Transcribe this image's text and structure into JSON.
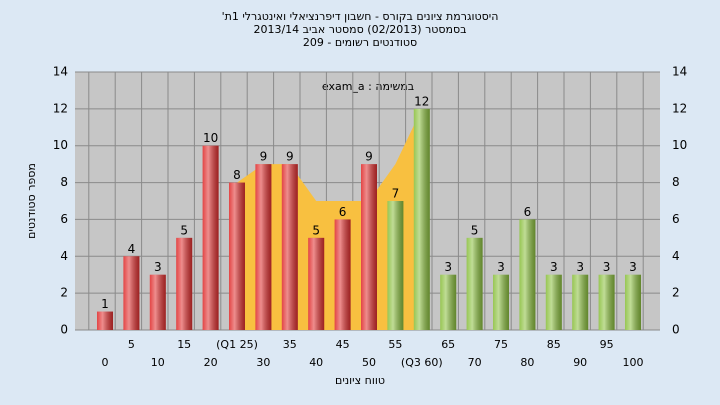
{
  "chart_data": {
    "type": "bar",
    "title": "היסטוגרמת ציונים בקורס - חשבון דיפרנציאלי ואינטגרלי 1ת'",
    "subtitle": "בסמסטר  (02/2013)  סמסטר אביב 2013/14",
    "subtitle2": "סטודנטים רשומים - 209",
    "annotation": "במשימה : exam_a",
    "xlabel": "טווח ציונים",
    "ylabel": "מספר סטודנטים",
    "categories": [
      "0",
      "5",
      "10",
      "15",
      "20",
      "(Q1 25)",
      "30",
      "35",
      "40",
      "45",
      "50",
      "55",
      "(Q3 60)",
      "65",
      "70",
      "75",
      "80",
      "85",
      "90",
      "95",
      "100"
    ],
    "values": [
      1,
      4,
      3,
      5,
      10,
      8,
      9,
      9,
      5,
      6,
      9,
      7,
      12,
      3,
      5,
      3,
      6,
      3,
      3,
      3,
      3
    ],
    "colors": [
      "#e03030",
      "#e03030",
      "#e03030",
      "#e03030",
      "#e03030",
      "#e03030",
      "#e03030",
      "#e03030",
      "#e03030",
      "#e03030",
      "#e03030",
      "#8cc040",
      "#8cc040",
      "#8cc040",
      "#8cc040",
      "#8cc040",
      "#8cc040",
      "#8cc040",
      "#8cc040",
      "#8cc040",
      "#8cc040"
    ],
    "band_values": [
      null,
      null,
      null,
      null,
      null,
      8,
      9,
      9,
      7,
      7,
      7,
      9,
      12,
      null,
      null,
      null,
      null,
      null,
      null,
      null,
      null
    ],
    "band_color": "#f8c040",
    "ylim": [
      0,
      14
    ],
    "yticks": [
      0,
      2,
      4,
      6,
      8,
      10,
      12,
      14
    ],
    "y2lim": [
      0,
      14
    ],
    "y2ticks": [
      0,
      2,
      4,
      6,
      8,
      10,
      12,
      14
    ],
    "grid": true
  }
}
